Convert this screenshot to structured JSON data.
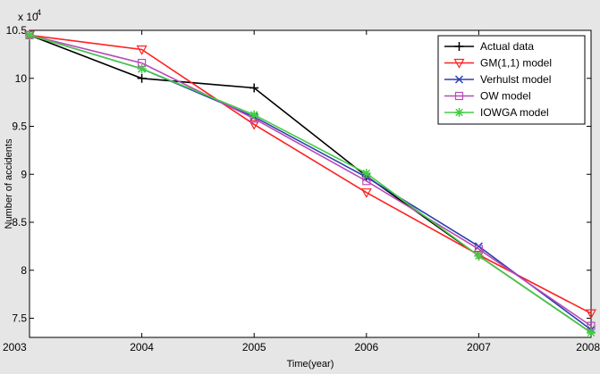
{
  "chart_data": {
    "type": "line",
    "title": "",
    "xlabel": "Time(year)",
    "ylabel": "Number of accidents",
    "y_exponent_label": "x 10",
    "y_exponent_power": "4",
    "x": [
      2003,
      2004,
      2005,
      2006,
      2007,
      2008
    ],
    "x_ticks": [
      "2003",
      "2004",
      "2005",
      "2006",
      "2007",
      "2008"
    ],
    "y_ticks": [
      7.5,
      8,
      8.5,
      9,
      9.5,
      10,
      10.5
    ],
    "y_tick_labels": [
      "7.5",
      "8",
      "8.5",
      "9",
      "9.5",
      "10",
      "10.5"
    ],
    "xlim": [
      2003,
      2008
    ],
    "ylim": [
      7.3,
      10.5
    ],
    "y_unit_multiplier": 10000,
    "grid": false,
    "legend_position": "top-right",
    "series": [
      {
        "name": "Actual data",
        "color": "#000000",
        "marker": "plus",
        "values": [
          10.45,
          10.0,
          9.9,
          8.98,
          8.15,
          7.35
        ]
      },
      {
        "name": "GM(1,1) model",
        "color": "#ff2020",
        "marker": "triangle-down",
        "values": [
          10.45,
          10.3,
          9.52,
          8.81,
          8.16,
          7.55
        ]
      },
      {
        "name": "Verhulst model",
        "color": "#2a3fb0",
        "marker": "x",
        "values": [
          10.45,
          10.1,
          9.6,
          8.97,
          8.25,
          7.38
        ]
      },
      {
        "name": "OW model",
        "color": "#b84ab8",
        "marker": "square",
        "values": [
          10.45,
          10.16,
          9.58,
          8.93,
          8.22,
          7.42
        ]
      },
      {
        "name": "IOWGA model",
        "color": "#44cc44",
        "marker": "star",
        "values": [
          10.45,
          10.1,
          9.62,
          9.01,
          8.15,
          7.35
        ]
      }
    ]
  }
}
